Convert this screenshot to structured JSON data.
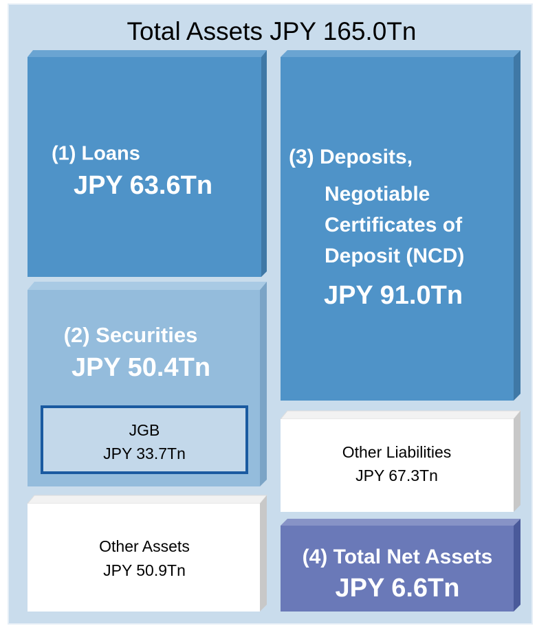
{
  "title": "Total Assets JPY 165.0Tn",
  "assets": {
    "loans": {
      "label": "(1) Loans",
      "amount": "JPY 63.6Tn"
    },
    "securities": {
      "label": "(2) Securities",
      "amount": "JPY 50.4Tn",
      "jgb": {
        "label": "JGB",
        "amount": "JPY 33.7Tn"
      }
    },
    "other_assets": {
      "label": "Other Assets",
      "amount": "JPY 50.9Tn"
    }
  },
  "liabilities": {
    "deposits": {
      "label_lines": [
        "(3) Deposits,",
        "Negotiable",
        "Certificates of",
        "Deposit (NCD)"
      ],
      "amount": "JPY 91.0Tn"
    },
    "other_liabilities": {
      "label": "Other Liabilities",
      "amount": "JPY 67.3Tn"
    },
    "net_assets": {
      "label": "(4) Total Net Assets",
      "amount": "JPY 6.6Tn"
    }
  }
}
